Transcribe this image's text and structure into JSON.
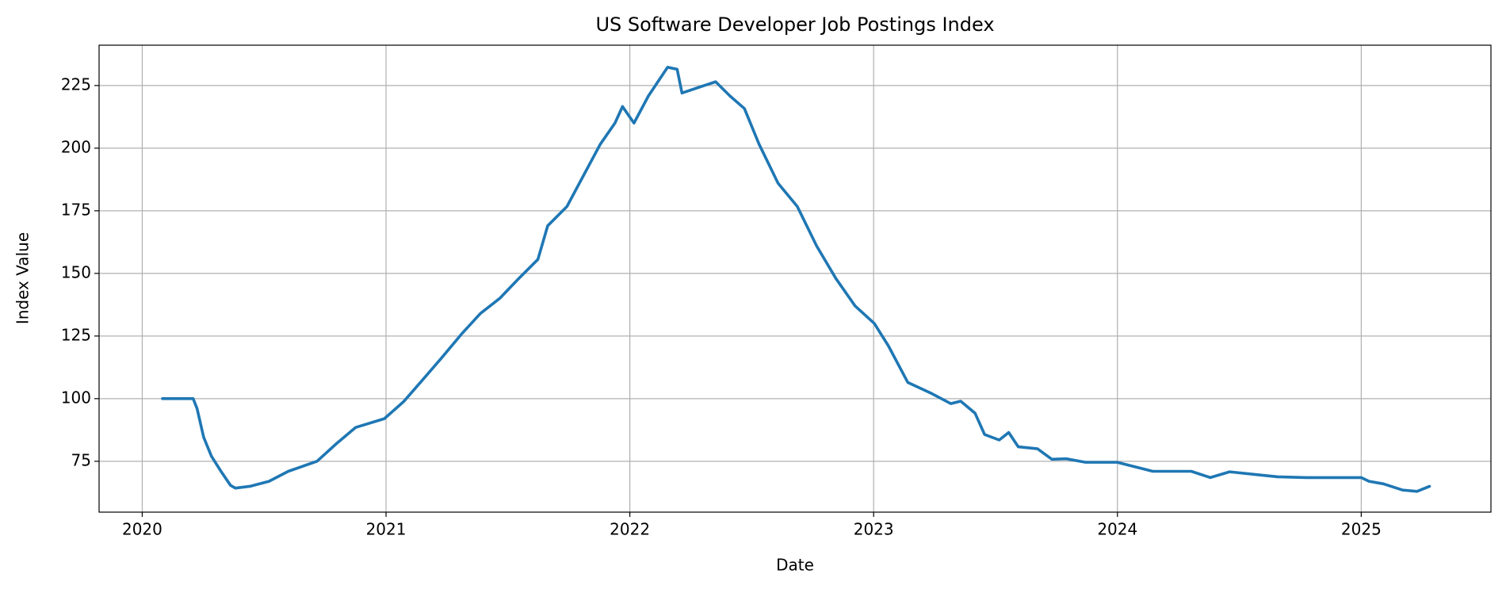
{
  "chart_data": {
    "type": "line",
    "title": "US Software Developer Job Postings Index",
    "x_label": "Date",
    "y_label": "Index Value",
    "x": [
      2020.083,
      2020.169,
      2020.209,
      2020.225,
      2020.252,
      2020.284,
      2020.323,
      2020.362,
      2020.382,
      2020.441,
      2020.52,
      2020.599,
      2020.717,
      2020.796,
      2020.875,
      2020.993,
      2021.072,
      2021.151,
      2021.229,
      2021.308,
      2021.387,
      2021.466,
      2021.545,
      2021.623,
      2021.663,
      2021.742,
      2021.82,
      2021.879,
      2021.939,
      2021.97,
      2022.017,
      2022.076,
      2022.155,
      2022.194,
      2022.214,
      2022.293,
      2022.352,
      2022.411,
      2022.47,
      2022.53,
      2022.608,
      2022.687,
      2022.766,
      2022.845,
      2022.924,
      2023.003,
      2023.061,
      2023.14,
      2023.239,
      2023.317,
      2023.357,
      2023.416,
      2023.455,
      2023.515,
      2023.554,
      2023.593,
      2023.672,
      2023.731,
      2023.79,
      2023.869,
      2023.999,
      2024.145,
      2024.303,
      2024.381,
      2024.46,
      2024.578,
      2024.657,
      2024.775,
      2024.933,
      2025.0,
      2025.032,
      2025.091,
      2025.17,
      2025.229,
      2025.28
    ],
    "values": [
      100,
      100,
      100,
      96,
      84.6,
      77,
      71,
      65.4,
      64.3,
      65,
      67,
      71,
      75,
      82,
      88.5,
      92,
      98.8,
      107.6,
      116.4,
      125.6,
      134,
      140,
      148,
      155.6,
      169,
      176.7,
      190.9,
      201.6,
      210,
      216.6,
      210,
      220.8,
      232.3,
      231.5,
      222,
      224.6,
      226.5,
      220.8,
      215.8,
      201.6,
      186,
      176.7,
      161,
      148,
      137,
      130,
      121,
      106.5,
      102,
      98,
      99,
      94.2,
      85.7,
      83.5,
      86.5,
      80.8,
      80,
      75.8,
      76,
      74.6,
      74.6,
      71,
      71,
      68.5,
      70.8,
      69.6,
      68.8,
      68.5,
      68.5,
      68.5,
      67,
      66,
      63.5,
      63,
      65
    ],
    "color": "#1f77b4",
    "xlim": [
      2019.823,
      2025.532
    ],
    "xticks": [
      2020,
      2021,
      2022,
      2023,
      2024,
      2025
    ],
    "ylim": [
      54.7,
      241.1
    ],
    "yticks": [
      75,
      100,
      125,
      150,
      175,
      200,
      225
    ],
    "grid": true
  }
}
